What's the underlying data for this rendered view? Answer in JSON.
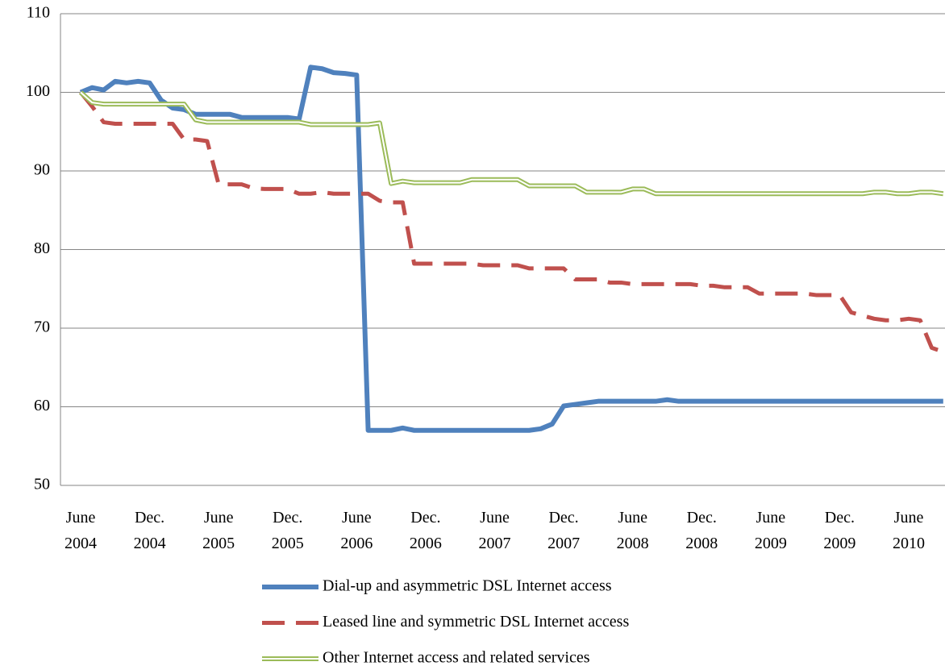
{
  "chart_data": {
    "type": "line",
    "categories": [
      "June\n2004",
      null,
      null,
      null,
      null,
      null,
      "Dec.\n2004",
      null,
      null,
      null,
      null,
      null,
      "June\n2005",
      null,
      null,
      null,
      null,
      null,
      "Dec.\n2005",
      null,
      null,
      null,
      null,
      null,
      "June\n2006",
      null,
      null,
      null,
      null,
      null,
      "Dec.\n2006",
      null,
      null,
      null,
      null,
      null,
      "June\n2007",
      null,
      null,
      null,
      null,
      null,
      "Dec.\n2007",
      null,
      null,
      null,
      null,
      null,
      "June\n2008",
      null,
      null,
      null,
      null,
      null,
      "Dec.\n2008",
      null,
      null,
      null,
      null,
      null,
      "June\n2009",
      null,
      null,
      null,
      null,
      null,
      "Dec.\n2009",
      null,
      null,
      null,
      null,
      null,
      "June\n2010",
      null,
      null,
      null
    ],
    "series": [
      {
        "name": "Dial-up and asymmetric DSL Internet access",
        "color": "#4f81bd",
        "line_style": "solid",
        "values": [
          100,
          100.6,
          100.3,
          101.4,
          101.2,
          101.4,
          101.2,
          99,
          98,
          97.8,
          97.2,
          97.2,
          97.2,
          97.2,
          96.8,
          96.8,
          96.8,
          96.8,
          96.8,
          96.6,
          103.2,
          103,
          102.5,
          102.4,
          102.2,
          57,
          57,
          57,
          57.3,
          57,
          57,
          57,
          57,
          57,
          57,
          57,
          57,
          57,
          57,
          57,
          57.2,
          57.8,
          60.1,
          60.3,
          60.5,
          60.7,
          60.7,
          60.7,
          60.7,
          60.7,
          60.7,
          60.9,
          60.7,
          60.7,
          60.7,
          60.7,
          60.7,
          60.7,
          60.7,
          60.7,
          60.7,
          60.7,
          60.7,
          60.7,
          60.7,
          60.7,
          60.7,
          60.7,
          60.7,
          60.7,
          60.7,
          60.7,
          60.7,
          60.7,
          60.7,
          60.7
        ]
      },
      {
        "name": "Leased line and symmetric DSL Internet access",
        "color": "#c0504d",
        "line_style": "dashed",
        "values": [
          100,
          98.2,
          96.2,
          96,
          96,
          96,
          96,
          96,
          96,
          94,
          94,
          93.8,
          88.3,
          88.3,
          88.3,
          87.8,
          87.7,
          87.7,
          87.7,
          87.1,
          87.1,
          87.3,
          87.1,
          87.1,
          87.1,
          87.1,
          86.2,
          86,
          86,
          78.2,
          78.2,
          78.2,
          78.2,
          78.2,
          78.2,
          78,
          78,
          78,
          78,
          77.6,
          77.6,
          77.6,
          77.6,
          76.2,
          76.2,
          76.2,
          75.8,
          75.8,
          75.6,
          75.6,
          75.6,
          75.6,
          75.6,
          75.6,
          75.4,
          75.4,
          75.2,
          75.2,
          75.2,
          74.4,
          74.4,
          74.4,
          74.4,
          74.4,
          74.2,
          74.2,
          74.2,
          72,
          71.6,
          71.2,
          71,
          71,
          71.2,
          71,
          67.5,
          67
        ]
      },
      {
        "name": "Other Internet access and related services",
        "color": "#9bbb59",
        "line_style": "double",
        "values": [
          100,
          98.7,
          98.5,
          98.5,
          98.5,
          98.5,
          98.5,
          98.5,
          98.5,
          98.5,
          96.5,
          96.2,
          96.2,
          96.2,
          96.2,
          96.2,
          96.2,
          96.2,
          96.2,
          96.2,
          95.9,
          95.9,
          95.9,
          95.9,
          95.9,
          95.9,
          96.1,
          88.4,
          88.7,
          88.5,
          88.5,
          88.5,
          88.5,
          88.5,
          88.9,
          88.9,
          88.9,
          88.9,
          88.9,
          88.1,
          88.1,
          88.1,
          88.1,
          88.1,
          87.3,
          87.3,
          87.3,
          87.3,
          87.7,
          87.7,
          87.1,
          87.1,
          87.1,
          87.1,
          87.1,
          87.1,
          87.1,
          87.1,
          87.1,
          87.1,
          87.1,
          87.1,
          87.1,
          87.1,
          87.1,
          87.1,
          87.1,
          87.1,
          87.1,
          87.3,
          87.3,
          87.1,
          87.1,
          87.3,
          87.3,
          87.1
        ]
      }
    ],
    "ylim": [
      50,
      110
    ],
    "yticks": [
      50,
      60,
      70,
      80,
      90,
      100,
      110
    ],
    "grid": true,
    "legend": "bottom"
  }
}
